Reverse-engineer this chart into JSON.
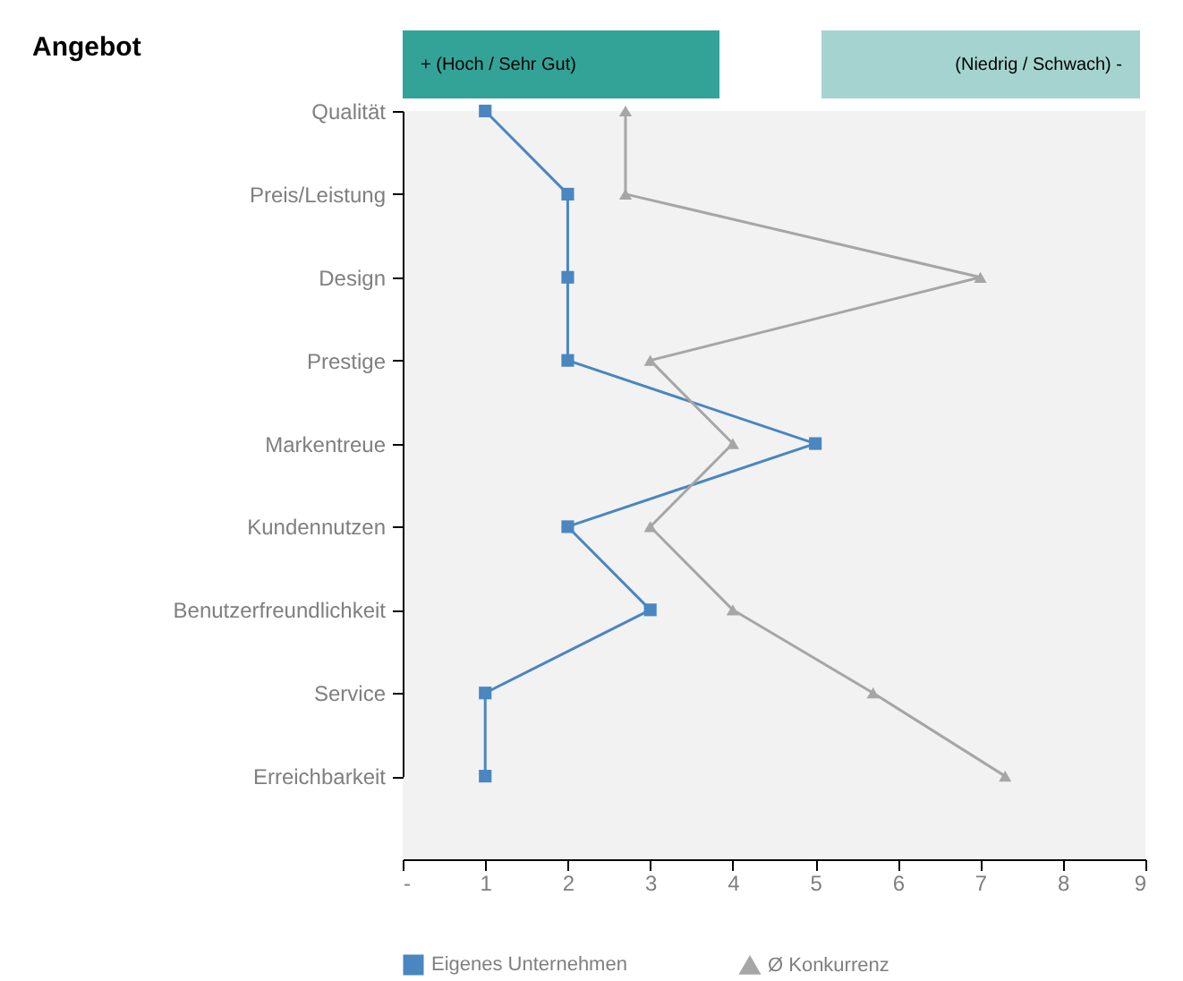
{
  "chart_data": {
    "type": "line",
    "orientation": "horizontal",
    "title": "Angebot",
    "annotations": [
      "+ (Hoch / Sehr Gut)",
      "(Niedrig / Schwach) -"
    ],
    "categories": [
      "Qualität",
      "Preis/Leistung",
      "Design",
      "Prestige",
      "Markentreue",
      "Kundennutzen",
      "Benutzerfreundlichkeit",
      "Service",
      "Erreichbarkeit"
    ],
    "series": [
      {
        "name": "Eigenes Unternehmen",
        "color": "#4a86c0",
        "marker": "square",
        "values": [
          1,
          2,
          2,
          2,
          5,
          2,
          3,
          1,
          1
        ]
      },
      {
        "name": "Ø Konkurrenz",
        "color": "#a6a6a6",
        "marker": "triangle",
        "values": [
          2.7,
          2.7,
          7,
          3,
          4,
          3,
          4,
          5.7,
          7.3
        ]
      }
    ],
    "xlim": [
      0,
      9
    ],
    "xticks": [
      {
        "value": 0,
        "label": "-"
      },
      1,
      2,
      3,
      4,
      5,
      6,
      7,
      8,
      9
    ],
    "grid": false,
    "legend": "bottom"
  }
}
